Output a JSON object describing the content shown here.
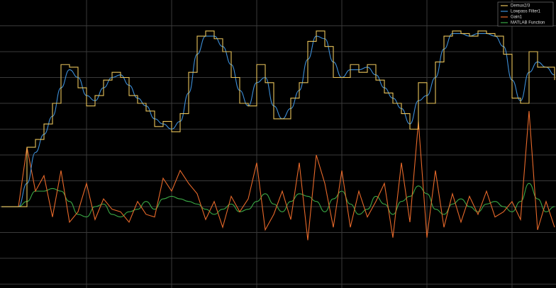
{
  "chart_data": {
    "type": "line",
    "x": [
      0,
      0.1,
      0.2,
      0.3,
      0.4,
      0.5,
      0.6,
      0.7,
      0.8,
      0.9,
      1,
      1.1,
      1.2,
      1.3,
      1.4,
      1.5,
      1.6,
      1.7,
      1.8,
      1.9,
      2,
      2.1,
      2.2,
      2.3,
      2.4,
      2.5,
      2.6,
      2.7,
      2.8,
      2.9,
      3,
      3.1,
      3.2,
      3.3,
      3.4,
      3.5,
      3.6,
      3.7,
      3.8,
      3.9,
      4,
      4.1,
      4.2,
      4.3,
      4.4,
      4.5,
      4.6,
      4.7,
      4.8,
      4.9,
      5,
      5.1,
      5.2,
      5.3,
      5.4,
      5.5,
      5.6,
      5.7,
      5.8,
      5.9,
      6,
      6.1,
      6.2,
      6.3,
      6.4,
      6.5
    ],
    "series": [
      {
        "name": "Demux2/3",
        "color": "#e8c35a",
        "line_shape": "step",
        "values": [
          0,
          0,
          0,
          2.3,
          2.6,
          3.2,
          4.0,
          5.5,
          5.4,
          4.6,
          3.9,
          4.3,
          4.9,
          5.2,
          5.0,
          4.3,
          4.0,
          3.7,
          3.1,
          3.3,
          2.9,
          3.6,
          5.2,
          6.6,
          6.8,
          6.5,
          6.0,
          5.0,
          4.0,
          3.9,
          5.5,
          4.8,
          3.4,
          3.4,
          4.2,
          4.8,
          6.4,
          6.8,
          6.2,
          5.0,
          5.0,
          5.5,
          5.2,
          5.5,
          4.9,
          4.4,
          4.0,
          3.6,
          3.0,
          4.8,
          4.0,
          5.6,
          6.6,
          6.8,
          6.7,
          6.6,
          6.8,
          6.7,
          6.6,
          5.9,
          4.2,
          4.0,
          6.0,
          5.4,
          5.4,
          4.9
        ]
      },
      {
        "name": "Lowpass Filter1",
        "color": "#3d8fd8",
        "line_shape": "smooth",
        "values": [
          0,
          0,
          0,
          0.9,
          2.1,
          2.8,
          3.5,
          4.6,
          5.3,
          5.0,
          4.3,
          4.1,
          4.6,
          5.0,
          5.1,
          4.7,
          4.2,
          3.9,
          3.4,
          3.2,
          3.0,
          3.3,
          4.4,
          5.9,
          6.6,
          6.6,
          6.2,
          5.5,
          4.5,
          3.9,
          4.8,
          5.0,
          3.9,
          3.4,
          3.8,
          4.5,
          5.7,
          6.6,
          6.5,
          5.6,
          5.0,
          5.3,
          5.3,
          5.4,
          5.1,
          4.6,
          4.2,
          3.8,
          3.2,
          4.1,
          4.3,
          5.0,
          6.1,
          6.7,
          6.7,
          6.6,
          6.7,
          6.7,
          6.6,
          6.2,
          4.9,
          4.1,
          5.2,
          5.6,
          5.4,
          5.1
        ]
      },
      {
        "name": "Gain1",
        "color": "#e8692a",
        "values": [
          0,
          0,
          0,
          2.3,
          0.6,
          1.2,
          -0.4,
          1.4,
          -0.6,
          -0.2,
          0.9,
          -0.5,
          0.3,
          -0.1,
          -0.2,
          -0.6,
          0.2,
          -0.3,
          -0.4,
          1.1,
          0.6,
          1.4,
          0.9,
          0.5,
          -0.5,
          0.2,
          -0.8,
          0.4,
          -0.2,
          0.3,
          1.7,
          -0.9,
          -0.3,
          0.6,
          -0.5,
          1.7,
          -1.3,
          2.0,
          0.9,
          -0.8,
          1.4,
          -0.8,
          0.6,
          -0.4,
          0.2,
          0.9,
          -1.2,
          1.7,
          -0.6,
          3.3,
          -1.2,
          1.4,
          -0.8,
          0.5,
          -0.6,
          0.4,
          -0.3,
          0.6,
          -0.4,
          -0.2,
          0.2,
          -0.5,
          3.7,
          -0.9,
          0.2,
          -0.8
        ]
      },
      {
        "name": "MATLAB Function",
        "color": "#3aa845",
        "line_shape": "smooth",
        "values": [
          0,
          0,
          0,
          0.2,
          0.6,
          0.6,
          0.7,
          0.6,
          0.2,
          -0.3,
          -0.4,
          0,
          0.1,
          -0.3,
          -0.4,
          -0.2,
          -0.1,
          0.2,
          -0.1,
          0.3,
          0.4,
          0.3,
          0.2,
          0.1,
          -0.1,
          -0.3,
          -0.1,
          0.1,
          -0.2,
          -0.1,
          0.2,
          0.5,
          0.1,
          -0.2,
          0.2,
          0.5,
          0.4,
          0.2,
          -0.2,
          0.3,
          0.6,
          0.1,
          -0.3,
          -0.1,
          0.4,
          0.1,
          -0.3,
          0.2,
          0.4,
          0.8,
          0.5,
          -0.1,
          -0.3,
          0.1,
          0.3,
          0,
          -0.2,
          0.1,
          0.2,
          0,
          -0.2,
          0.2,
          0.9,
          0.3,
          -0.2,
          0
        ]
      }
    ],
    "xlim": [
      -0.0167,
      6.5167
    ],
    "ylim": [
      -3.15,
      8.0
    ],
    "xticks": [
      1,
      2,
      3,
      4,
      5,
      6
    ],
    "yticks": [
      -3,
      -2,
      -1,
      0,
      1,
      2,
      3,
      4,
      5,
      6,
      7
    ],
    "grid": true,
    "legend": "top-right"
  }
}
